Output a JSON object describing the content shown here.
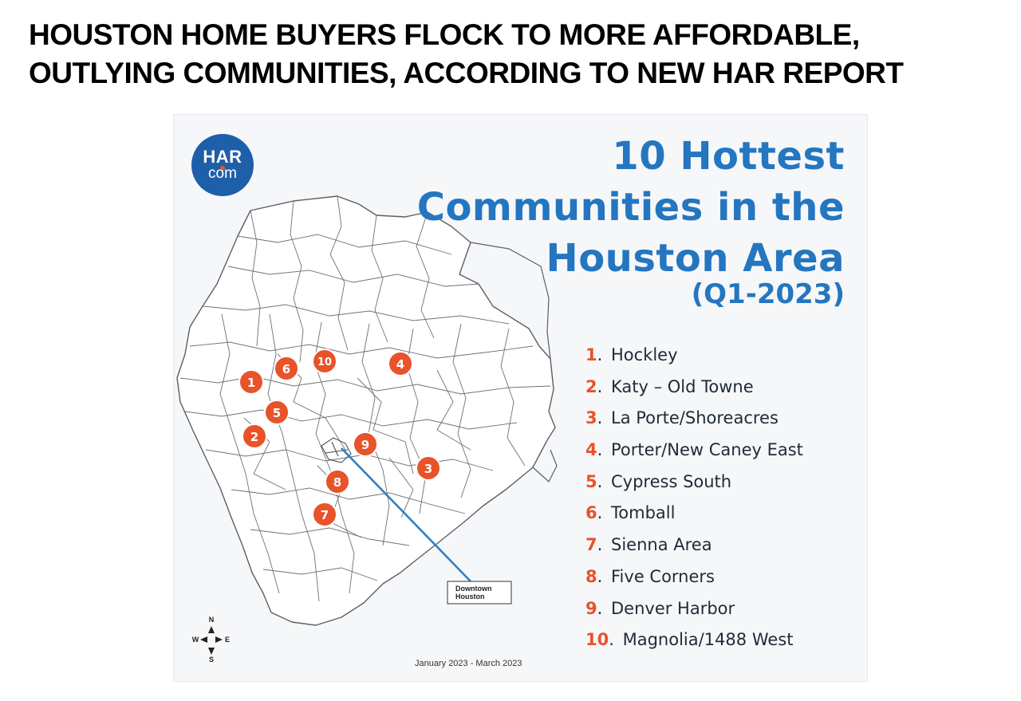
{
  "headline": {
    "line1": "HOUSTON HOME BUYERS FLOCK TO MORE AFFORDABLE,",
    "line2": "OUTLYING COMMUNITIES, ACCORDING TO NEW HAR REPORT"
  },
  "logo": {
    "top": "HAR",
    "bottom": "com",
    "background": "#1e5faa"
  },
  "map": {
    "title_lines": [
      "10 Hottest",
      "Communities in the",
      "Houston Area"
    ],
    "subtitle": "(Q1-2023)",
    "title_color": "#2476c0",
    "marker_color": "#e8532a",
    "callout_label_lines": [
      "Downtown",
      "Houston"
    ],
    "callout_line_color": "#2f7fc1",
    "compass": {
      "n": "N",
      "s": "S",
      "e": "E",
      "w": "W"
    },
    "date_range": "January 2023 - March 2023",
    "markers": [
      "1",
      "2",
      "3",
      "4",
      "5",
      "6",
      "7",
      "8",
      "9",
      "10"
    ]
  },
  "rankings": [
    {
      "num": "1",
      "name": "Hockley"
    },
    {
      "num": "2",
      "name": "Katy – Old Towne"
    },
    {
      "num": "3",
      "name": "La Porte/Shoreacres"
    },
    {
      "num": "4",
      "name": "Porter/New Caney East"
    },
    {
      "num": "5",
      "name": "Cypress South"
    },
    {
      "num": "6",
      "name": "Tomball"
    },
    {
      "num": "7",
      "name": "Sienna Area"
    },
    {
      "num": "8",
      "name": "Five Corners"
    },
    {
      "num": "9",
      "name": "Denver Harbor"
    },
    {
      "num": "10",
      "name": "Magnolia/1488 West"
    }
  ]
}
